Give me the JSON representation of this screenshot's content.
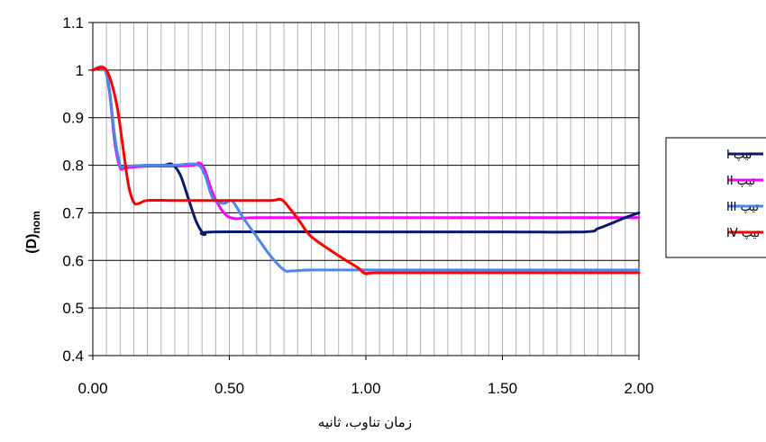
{
  "chart_data": {
    "type": "line",
    "title": "",
    "xlabel": "زمان تناوب، ثانیه",
    "ylabel": "(D)nom",
    "ylabel_main": "(D)",
    "ylabel_sub": "nom",
    "xlim": [
      0,
      2
    ],
    "ylim": [
      0.4,
      1.1
    ],
    "x_ticks": [
      0,
      0.5,
      1,
      1.5,
      2
    ],
    "x_tick_labels": [
      "0.00",
      "0.50",
      "1.00",
      "1.50",
      "2.00"
    ],
    "y_ticks": [
      0.4,
      0.5,
      0.6,
      0.7,
      0.8,
      0.9,
      1,
      1.1
    ],
    "y_tick_labels": [
      "0.4",
      "0.5",
      "0.6",
      "0.7",
      "0.8",
      "0.9",
      "1",
      "1.1"
    ],
    "x_minor_step": 0.05,
    "grid": true,
    "legend_position": "right",
    "series": [
      {
        "name": "تیپ I",
        "color": "#0a1a6e",
        "x": [
          0,
          0.04,
          0.06,
          0.08,
          0.1,
          0.12,
          0.2,
          0.26,
          0.29,
          0.32,
          0.35,
          0.38,
          0.41,
          0.45,
          1.0,
          1.5,
          1.8,
          1.85,
          1.9,
          1.95,
          2.0
        ],
        "y": [
          1.0,
          1.005,
          0.96,
          0.86,
          0.8,
          0.798,
          0.8,
          0.8,
          0.802,
          0.78,
          0.73,
          0.68,
          0.655,
          0.66,
          0.66,
          0.66,
          0.66,
          0.667,
          0.678,
          0.69,
          0.7
        ]
      },
      {
        "name": "تیپ II",
        "color": "#ff00ff",
        "x": [
          0,
          0.04,
          0.06,
          0.08,
          0.1,
          0.12,
          0.2,
          0.3,
          0.37,
          0.39,
          0.41,
          0.44,
          0.48,
          0.52,
          0.6,
          1.0,
          1.5,
          2.0
        ],
        "y": [
          1.0,
          1.005,
          0.96,
          0.85,
          0.795,
          0.795,
          0.798,
          0.798,
          0.8,
          0.805,
          0.79,
          0.74,
          0.7,
          0.688,
          0.69,
          0.69,
          0.69,
          0.69
        ],
        "underneath": true
      },
      {
        "name": "تیپ III",
        "color": "#4f86ea",
        "x": [
          0,
          0.04,
          0.06,
          0.08,
          0.1,
          0.12,
          0.2,
          0.3,
          0.38,
          0.41,
          0.44,
          0.48,
          0.51,
          0.55,
          0.6,
          0.65,
          0.7,
          0.73,
          0.8,
          1.0,
          1.5,
          2.0
        ],
        "y": [
          1.0,
          1.005,
          0.96,
          0.86,
          0.8,
          0.798,
          0.8,
          0.8,
          0.802,
          0.78,
          0.73,
          0.72,
          0.725,
          0.69,
          0.65,
          0.61,
          0.58,
          0.578,
          0.58,
          0.58,
          0.58,
          0.58
        ]
      },
      {
        "name": "تیپ IV",
        "color": "#ff0000",
        "x": [
          0,
          0.03,
          0.05,
          0.07,
          0.09,
          0.11,
          0.13,
          0.15,
          0.17,
          0.2,
          0.3,
          0.5,
          0.65,
          0.69,
          0.72,
          0.76,
          0.8,
          0.9,
          0.97,
          1.0,
          1.05,
          1.5,
          2.0
        ],
        "y": [
          1.0,
          1.005,
          1.0,
          0.97,
          0.92,
          0.84,
          0.76,
          0.722,
          0.72,
          0.726,
          0.726,
          0.726,
          0.726,
          0.728,
          0.71,
          0.68,
          0.65,
          0.61,
          0.585,
          0.572,
          0.574,
          0.574,
          0.574
        ]
      }
    ]
  }
}
